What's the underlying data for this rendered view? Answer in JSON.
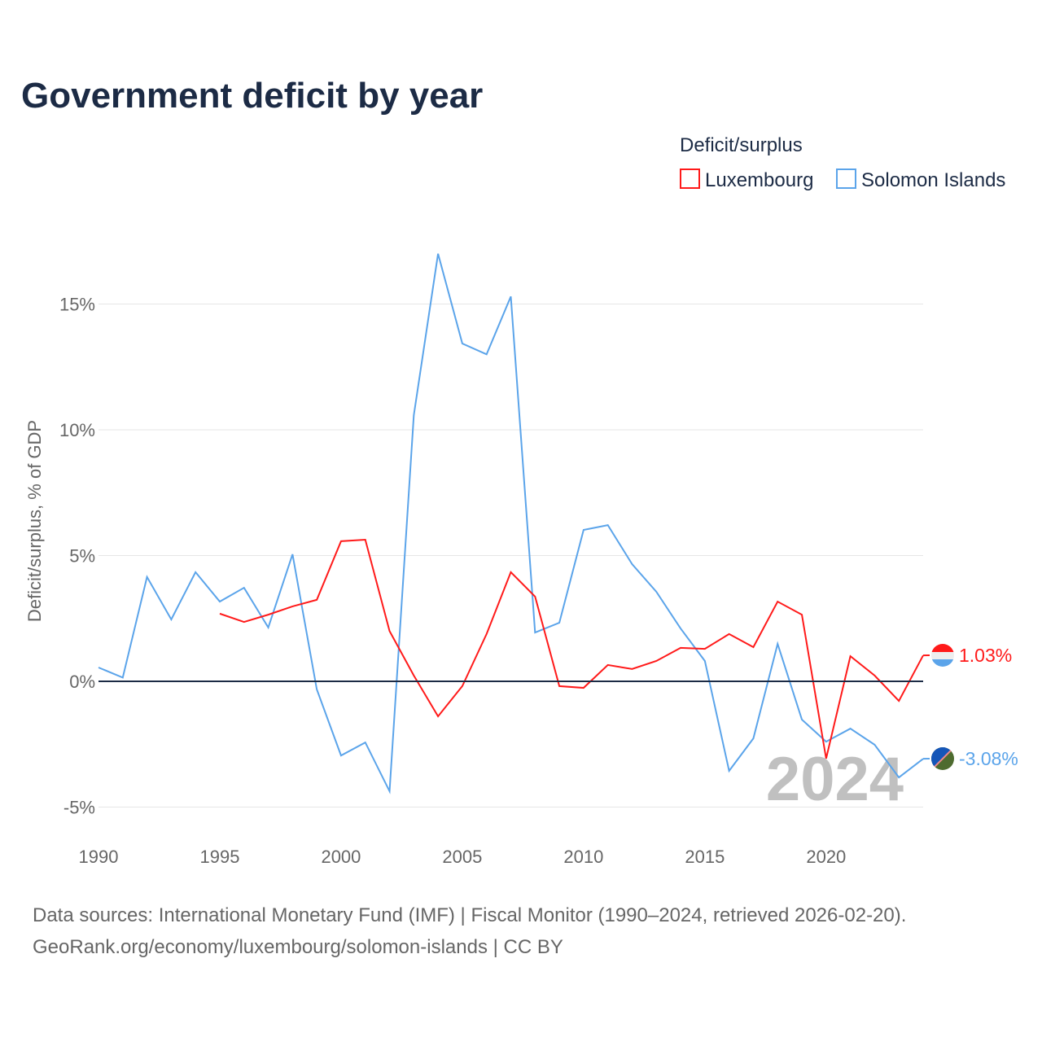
{
  "chart_data": {
    "type": "line",
    "title": "Government deficit by year",
    "ylabel": "Deficit/surplus, % of GDP",
    "xlabel": "",
    "legend_title": "Deficit/surplus",
    "legend_position": "top-right",
    "xlim": [
      1990,
      2024
    ],
    "ylim": [
      -5,
      17.5
    ],
    "x_ticks": [
      1990,
      1995,
      2000,
      2005,
      2010,
      2015,
      2020
    ],
    "x_tick_labels": [
      "1990",
      "1995",
      "2000",
      "2005",
      "2010",
      "2015",
      "2020"
    ],
    "y_ticks": [
      -5,
      0,
      5,
      10,
      15
    ],
    "y_tick_labels": [
      "-5%",
      "0%",
      "5%",
      "10%",
      "15%"
    ],
    "grid": true,
    "year_watermark": "2024",
    "series": [
      {
        "name": "Luxembourg",
        "color": "#ff1a1a",
        "end_label": "1.03%",
        "x": [
          1995,
          1996,
          1997,
          1998,
          1999,
          2000,
          2001,
          2002,
          2003,
          2004,
          2005,
          2006,
          2007,
          2008,
          2009,
          2010,
          2011,
          2012,
          2013,
          2014,
          2015,
          2016,
          2017,
          2018,
          2019,
          2020,
          2021,
          2022,
          2023,
          2024
        ],
        "values": [
          2.69,
          2.36,
          2.65,
          2.98,
          3.24,
          5.57,
          5.63,
          2.0,
          0.23,
          -1.39,
          -0.19,
          1.88,
          4.34,
          3.37,
          -0.19,
          -0.26,
          0.65,
          0.49,
          0.81,
          1.33,
          1.29,
          1.88,
          1.36,
          3.17,
          2.65,
          -3.07,
          1.0,
          0.23,
          -0.78,
          1.03
        ]
      },
      {
        "name": "Solomon Islands",
        "color": "#5ba4ea",
        "end_label": "-3.08%",
        "x": [
          1990,
          1991,
          1992,
          1993,
          1994,
          1995,
          1996,
          1997,
          1998,
          1999,
          2000,
          2001,
          2002,
          2003,
          2004,
          2005,
          2006,
          2007,
          2008,
          2009,
          2010,
          2011,
          2012,
          2013,
          2014,
          2015,
          2016,
          2017,
          2018,
          2019,
          2020,
          2021,
          2022,
          2023,
          2024
        ],
        "values": [
          0.55,
          0.15,
          4.15,
          2.46,
          4.34,
          3.17,
          3.72,
          2.14,
          5.05,
          -0.32,
          -2.95,
          -2.43,
          -4.37,
          10.58,
          17.0,
          13.43,
          13.0,
          15.3,
          1.94,
          2.33,
          6.02,
          6.21,
          4.66,
          3.56,
          2.1,
          0.81,
          -3.56,
          -2.27,
          1.49,
          -1.52,
          -2.4,
          -1.88,
          -2.52,
          -3.82,
          -3.08
        ]
      }
    ],
    "source_line1": "Data sources: International Monetary Fund (IMF) | Fiscal Monitor (1990–2024, retrieved 2026-02-20).",
    "source_line2": "GeoRank.org/economy/luxembourg/solomon-islands | CC BY"
  }
}
